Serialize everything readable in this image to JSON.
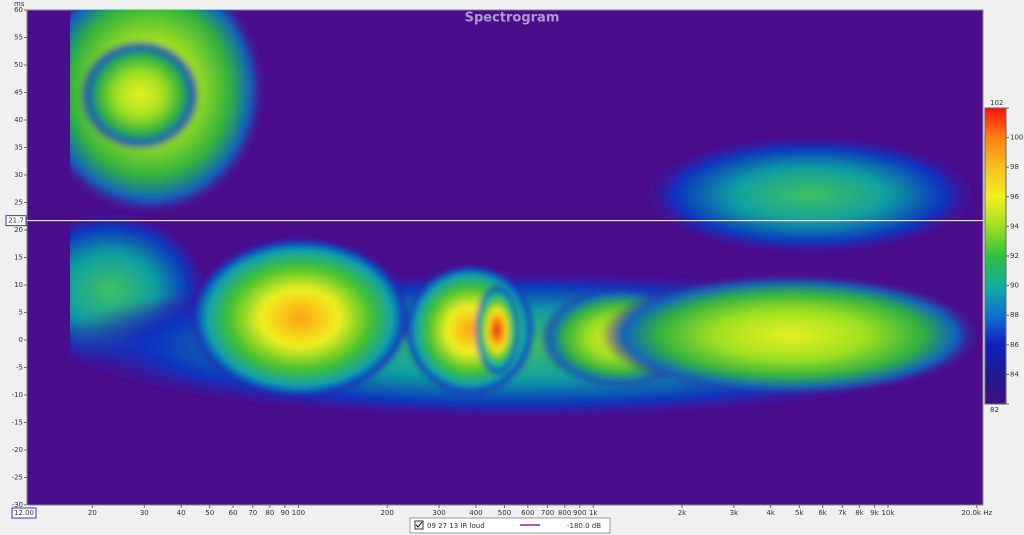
{
  "chart_data": {
    "type": "heatmap",
    "title": "Spectrogram",
    "y_unit": "ms",
    "xscale": "log",
    "xlim": [
      12,
      21000
    ],
    "xticks": [
      20,
      30,
      40,
      50,
      60,
      70,
      80,
      90,
      100,
      200,
      300,
      400,
      500,
      600,
      700,
      800,
      900,
      {
        "value": 1000,
        "label": "1k"
      },
      {
        "value": 2000,
        "label": "2k"
      },
      {
        "value": 3000,
        "label": "3k"
      },
      {
        "value": 4000,
        "label": "4k"
      },
      {
        "value": 5000,
        "label": "5k"
      },
      {
        "value": 6000,
        "label": "6k"
      },
      {
        "value": 7000,
        "label": "7k"
      },
      {
        "value": 8000,
        "label": "8k"
      },
      {
        "value": 9000,
        "label": "9k"
      },
      {
        "value": 10000,
        "label": "10k"
      },
      {
        "value": 20000,
        "label": "20.0k Hz"
      }
    ],
    "ylim": [
      -30,
      60
    ],
    "yticks": [
      -30,
      -25,
      -20,
      -15,
      -10,
      -5,
      0,
      5,
      10,
      15,
      20,
      25,
      30,
      35,
      40,
      45,
      50,
      55,
      60
    ],
    "grid": false,
    "colorbar": {
      "lim": [
        82,
        102
      ],
      "ticks": [
        82,
        84,
        86,
        88,
        90,
        92,
        94,
        96,
        98,
        100,
        102
      ]
    },
    "cursor": {
      "y": 21.7,
      "x": {
        "value": 12,
        "label": "12.00"
      }
    },
    "legend": {
      "name": "09 27 13 IR loud",
      "color": "#a020a0",
      "value_label": "-180.0 dB"
    }
  }
}
